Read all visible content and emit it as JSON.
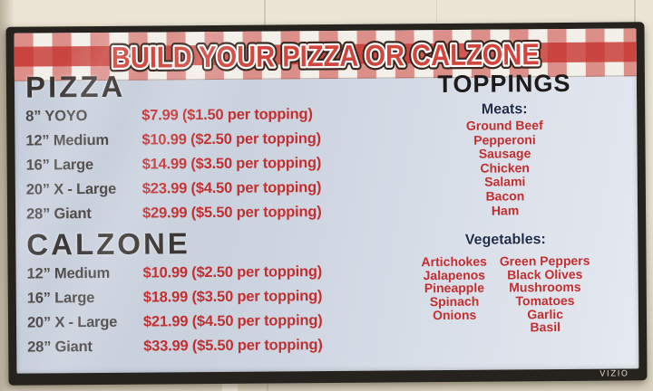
{
  "banner": {
    "title": "BUILD YOUR PIZZA OR CALZONE"
  },
  "pizza": {
    "heading": "PIZZA",
    "items": [
      {
        "size": "8” YOYO",
        "price": "$7.99 ($1.50 per topping)"
      },
      {
        "size": "12” Medium",
        "price": "$10.99 ($2.50 per topping)"
      },
      {
        "size": "16” Large",
        "price": "$14.99 ($3.50 per topping)"
      },
      {
        "size": "20” X - Large",
        "price": "$23.99 ($4.50 per topping)"
      },
      {
        "size": "28” Giant",
        "price": "$29.99 ($5.50 per topping)"
      }
    ]
  },
  "calzone": {
    "heading": "CALZONE",
    "items": [
      {
        "size": "12” Medium",
        "price": "$10.99 ($2.50 per topping)"
      },
      {
        "size": "16” Large",
        "price": "$18.99 ($3.50 per topping)"
      },
      {
        "size": "20” X - Large",
        "price": "$21.99 ($4.50 per topping)"
      },
      {
        "size": "28” Giant",
        "price": "$33.99 ($5.50 per topping)"
      }
    ]
  },
  "toppings": {
    "heading": "TOPPINGS",
    "meats": {
      "heading": "Meats:",
      "items": [
        "Ground Beef",
        "Pepperoni",
        "Sausage",
        "Chicken",
        "Salami",
        "Bacon",
        "Ham"
      ]
    },
    "vegetables": {
      "heading": "Vegetables:",
      "col1": [
        "Artichokes",
        "Jalapenos",
        "Pineapple",
        "Spinach",
        "Onions"
      ],
      "col2": [
        "Green Peppers",
        "Black Olives",
        "Mushrooms",
        "Tomatoes",
        "Garlic",
        "Basil"
      ]
    }
  },
  "tv": {
    "brand": "VIZIO"
  },
  "colors": {
    "price_red": "#c22f30",
    "title_red": "#d2453c",
    "title_outline": "#39281f",
    "size_label_gray": "#4c4845",
    "section_heading_dark": "#3b3633",
    "toppings_heading_black": "#1e1b1a",
    "subheading_navy": "#202c4e",
    "gingham_red": "#c5302a",
    "screen_background": "#ccd4df",
    "bezel_black": "#26221d",
    "wall_cream": "#e9e1d1"
  }
}
